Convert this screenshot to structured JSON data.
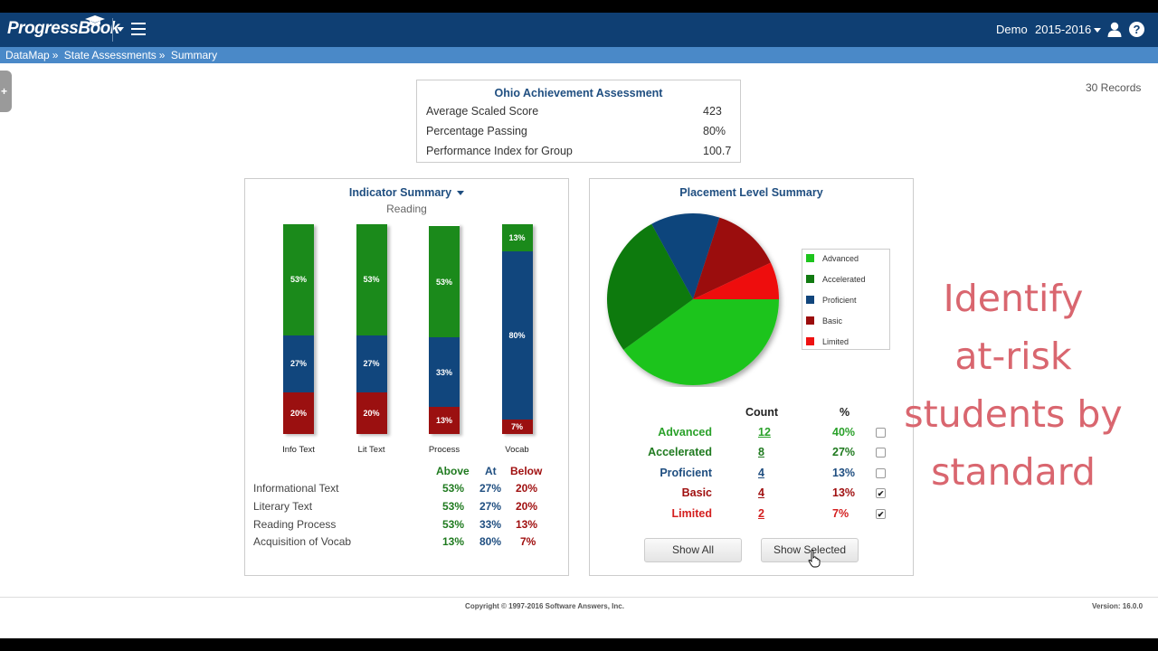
{
  "header": {
    "logo": "ProgressBook",
    "user": "Demo",
    "year": "2015-2016",
    "icons": [
      "menu-icon",
      "user-icon",
      "help-icon"
    ]
  },
  "breadcrumb": [
    "DataMap",
    "State Assessments",
    "Summary"
  ],
  "breadcrumb_sep": "»",
  "records": "30 Records",
  "assessment": {
    "title": "Ohio Achievement Assessment",
    "rows": [
      {
        "label": "Average Scaled Score",
        "value": "423"
      },
      {
        "label": "Percentage Passing",
        "value": "80%"
      },
      {
        "label": "Performance Index for Group",
        "value": "100.7"
      }
    ]
  },
  "indicator": {
    "title": "Indicator Summary",
    "subtitle": "Reading",
    "headers": {
      "above": "Above",
      "at": "At",
      "below": "Below"
    },
    "rows": [
      {
        "label": "Informational Text",
        "above": "53%",
        "at": "27%",
        "below": "20%"
      },
      {
        "label": "Literary Text",
        "above": "53%",
        "at": "27%",
        "below": "20%"
      },
      {
        "label": "Reading Process",
        "above": "53%",
        "at": "33%",
        "below": "13%"
      },
      {
        "label": "Acquisition of Vocab",
        "above": "13%",
        "at": "80%",
        "below": "7%"
      }
    ]
  },
  "placement": {
    "title": "Placement Level Summary",
    "count_header": "Count",
    "pct_header": "%",
    "rows": [
      {
        "label": "Advanced",
        "count": "12",
        "pct": "40%",
        "checked": false,
        "color": "#2aa12a"
      },
      {
        "label": "Accelerated",
        "count": "8",
        "pct": "27%",
        "checked": false,
        "color": "#1f7a1f"
      },
      {
        "label": "Proficient",
        "count": "4",
        "pct": "13%",
        "checked": false,
        "color": "#1f4e80"
      },
      {
        "label": "Basic",
        "count": "4",
        "pct": "13%",
        "checked": true,
        "color": "#a01010"
      },
      {
        "label": "Limited",
        "count": "2",
        "pct": "7%",
        "checked": true,
        "color": "#d42020"
      }
    ],
    "show_all": "Show All",
    "show_selected": "Show Selected"
  },
  "chart_data": [
    {
      "type": "bar",
      "stacked": true,
      "categories": [
        "Info Text",
        "Lit Text",
        "Process",
        "Vocab"
      ],
      "series": [
        {
          "values": [
            20,
            20,
            13,
            7
          ],
          "color": "#9b1010"
        },
        {
          "values": [
            27,
            27,
            33,
            80
          ],
          "color": "#11467d"
        },
        {
          "values": [
            53,
            53,
            53,
            13
          ],
          "color": "#1b8a1b"
        }
      ],
      "ylim": [
        0,
        100
      ]
    },
    {
      "type": "pie",
      "categories": [
        "Advanced",
        "Accelerated",
        "Proficient",
        "Basic",
        "Limited"
      ],
      "values": [
        40,
        27,
        13,
        13,
        7
      ],
      "colors": [
        "#1dc41d",
        "#117a11",
        "#11457c",
        "#9b0c0c",
        "#ee1111"
      ],
      "legend": "right"
    }
  ],
  "overlay_text": [
    "Identify",
    "at-risk",
    "students by",
    "standard"
  ],
  "footer": {
    "copyright": "Copyright © 1997-2016 Software Answers, Inc.",
    "version": "Version: 16.0.0"
  }
}
